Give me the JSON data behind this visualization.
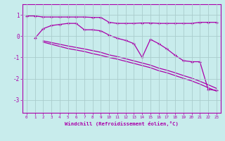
{
  "xlabel": "Windchill (Refroidissement éolien,°C)",
  "background_color": "#c8ecec",
  "line_color": "#aa00aa",
  "grid_color": "#aacccc",
  "xlim": [
    -0.5,
    23.5
  ],
  "ylim": [
    -3.6,
    1.5
  ],
  "x": [
    0,
    1,
    2,
    3,
    4,
    5,
    6,
    7,
    8,
    9,
    10,
    11,
    12,
    13,
    14,
    15,
    16,
    17,
    18,
    19,
    20,
    21,
    22,
    23
  ],
  "line1": [
    0.95,
    0.95,
    0.9,
    0.9,
    0.9,
    0.9,
    0.9,
    0.9,
    0.88,
    0.88,
    0.65,
    0.6,
    0.6,
    0.6,
    0.62,
    0.62,
    0.6,
    0.6,
    0.6,
    0.6,
    0.6,
    0.65,
    0.65,
    0.65
  ],
  "line2_x": [
    1,
    2,
    3,
    4,
    5,
    6,
    7,
    8,
    9,
    10,
    11,
    12,
    13,
    14,
    15,
    16,
    17,
    18,
    19,
    20,
    21,
    22,
    23
  ],
  "line2": [
    -0.1,
    0.35,
    0.5,
    0.55,
    0.6,
    0.6,
    0.3,
    0.3,
    0.25,
    0.05,
    -0.1,
    -0.2,
    -0.35,
    -1.0,
    -0.15,
    -0.35,
    -0.6,
    -0.9,
    -1.15,
    -1.2,
    -1.2,
    -2.5,
    -2.55
  ],
  "line3_x": [
    2,
    3,
    4,
    5,
    6,
    7,
    8,
    9,
    10,
    11,
    12,
    13,
    14,
    15,
    16,
    17,
    18,
    19,
    20,
    21,
    22,
    23
  ],
  "line3": [
    -0.28,
    -0.38,
    -0.48,
    -0.58,
    -0.65,
    -0.72,
    -0.82,
    -0.9,
    -1.0,
    -1.08,
    -1.18,
    -1.28,
    -1.38,
    -1.48,
    -1.62,
    -1.72,
    -1.85,
    -1.98,
    -2.1,
    -2.25,
    -2.42,
    -2.58
  ],
  "line4_x": [
    2,
    3,
    4,
    5,
    6,
    7,
    8,
    9,
    10,
    11,
    12,
    13,
    14,
    15,
    16,
    17,
    18,
    19,
    20,
    21,
    22,
    23
  ],
  "line4": [
    -0.22,
    -0.3,
    -0.38,
    -0.46,
    -0.53,
    -0.6,
    -0.68,
    -0.76,
    -0.88,
    -0.96,
    -1.06,
    -1.16,
    -1.26,
    -1.36,
    -1.5,
    -1.6,
    -1.72,
    -1.85,
    -1.97,
    -2.12,
    -2.28,
    -2.45
  ],
  "yticks": [
    -3,
    -2,
    -1,
    0,
    1
  ],
  "xticks": [
    0,
    1,
    2,
    3,
    4,
    5,
    6,
    7,
    8,
    9,
    10,
    11,
    12,
    13,
    14,
    15,
    16,
    17,
    18,
    19,
    20,
    21,
    22,
    23
  ]
}
